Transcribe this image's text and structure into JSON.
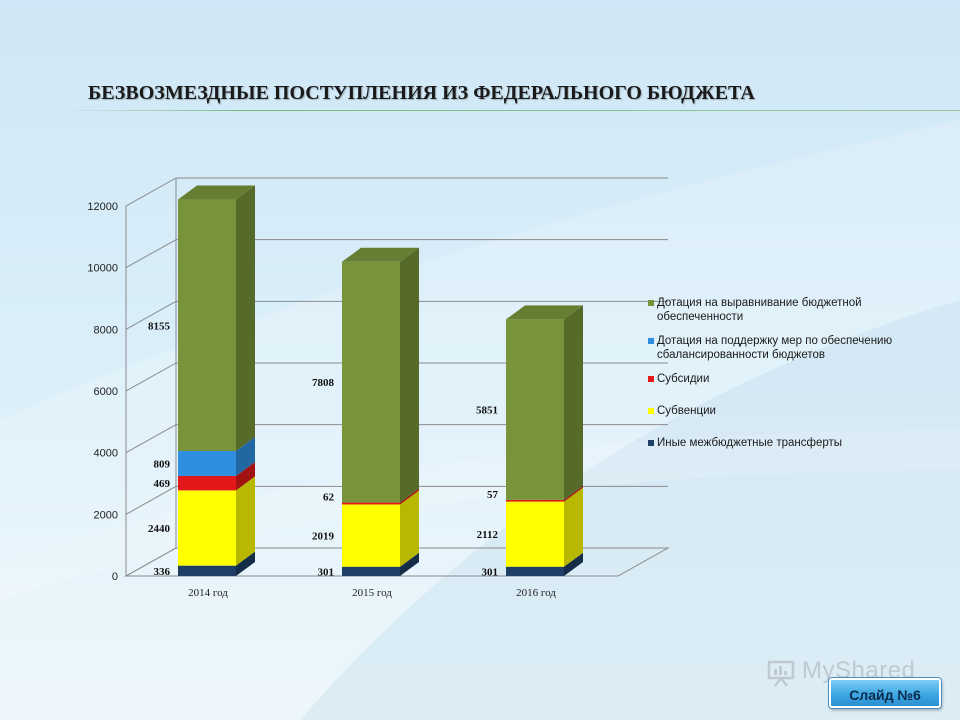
{
  "title": "БЕЗВОЗМЕЗДНЫЕ ПОСТУПЛЕНИЯ ИЗ ФЕДЕРАЛЬНОГО БЮДЖЕТА",
  "watermark": "MyShared",
  "slide_button": "Слайд №6",
  "colors": {
    "dotation_equalization": "#77943a",
    "dotation_balance": "#2e8fe0",
    "subsidies": "#e31919",
    "subventions": "#ffff00",
    "other_transfers": "#1f3f66"
  },
  "chart_data": {
    "type": "bar",
    "stacked": true,
    "three_d": true,
    "categories": [
      "2014 год",
      "2015 год",
      "2016 год"
    ],
    "ylim": [
      0,
      12000
    ],
    "yticks": [
      0,
      2000,
      4000,
      6000,
      8000,
      10000,
      12000
    ],
    "grid": true,
    "legend_position": "right",
    "series": [
      {
        "name": "Иные межбюджетные трансферты",
        "color": "#1f3f66",
        "values": [
          336,
          301,
          301
        ],
        "labels": [
          "336",
          "301",
          "301"
        ]
      },
      {
        "name": "Субвенции",
        "color": "#ffff00",
        "values": [
          2440,
          2019,
          2112
        ],
        "labels": [
          "2440",
          "2019",
          "2112"
        ]
      },
      {
        "name": "Субсидии",
        "color": "#e31919",
        "values": [
          469,
          62,
          57
        ],
        "labels": [
          "469",
          "62",
          "57"
        ]
      },
      {
        "name": "Дотация на поддержку мер по обеспечению сбалансированности бюджетов",
        "color": "#2e8fe0",
        "values": [
          809,
          0,
          0
        ],
        "labels": [
          "809",
          "",
          ""
        ]
      },
      {
        "name": "Дотация на выравнивание бюджетной обеспеченности",
        "color": "#77943a",
        "values": [
          8155,
          7808,
          5851
        ],
        "labels": [
          "8155",
          "7808",
          "5851"
        ]
      }
    ],
    "legend_order": [
      "Дотация на выравнивание бюджетной обеспеченности",
      "Дотация на поддержку мер по обеспечению сбалансированности бюджетов",
      "Субсидии",
      "Субвенции",
      "Иные межбюджетные трансферты"
    ]
  }
}
